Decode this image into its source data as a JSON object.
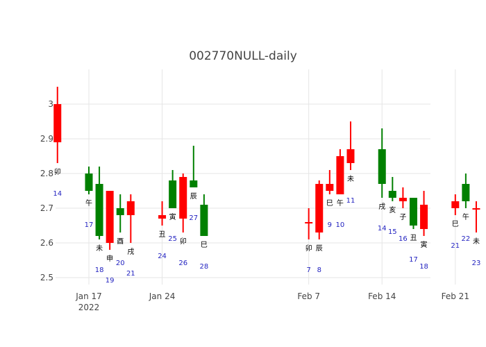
{
  "chart_data": {
    "type": "candlestick",
    "title": "002770NULL-daily",
    "xlabel": "",
    "ylabel": "",
    "ylim": [
      2.48,
      3.1
    ],
    "y_ticks": [
      2.5,
      2.6,
      2.7,
      2.8,
      2.9,
      3
    ],
    "y_tick_labels": [
      "2.5",
      "2.6",
      "2.7",
      "2.8",
      "2.9",
      "3"
    ],
    "x_ticks": [
      {
        "date": "2022-01-17",
        "label": "Jan 17",
        "sublabel": "2022"
      },
      {
        "date": "2022-01-24",
        "label": "Jan 24",
        "sublabel": ""
      },
      {
        "date": "2022-02-07",
        "label": "Feb 7",
        "sublabel": ""
      },
      {
        "date": "2022-02-14",
        "label": "Feb 14",
        "sublabel": ""
      },
      {
        "date": "2022-02-21",
        "label": "Feb 21",
        "sublabel": ""
      }
    ],
    "grid": true,
    "legend": "none",
    "colors": {
      "increasing": "#ff0000",
      "decreasing": "#008000",
      "grid": "#e5e5e5",
      "annotation_number": "#1f1fbf",
      "annotation_zodiac": "#000000"
    },
    "candles": [
      {
        "date": "2022-01-14",
        "open": 2.89,
        "high": 3.05,
        "low": 2.83,
        "close": 3.0,
        "zodiac": "卯",
        "day": "14"
      },
      {
        "date": "2022-01-17",
        "open": 2.8,
        "high": 2.82,
        "low": 2.74,
        "close": 2.75,
        "zodiac": "午",
        "day": "17"
      },
      {
        "date": "2022-01-18",
        "open": 2.77,
        "high": 2.82,
        "low": 2.61,
        "close": 2.62,
        "zodiac": "未",
        "day": "18"
      },
      {
        "date": "2022-01-19",
        "open": 2.6,
        "high": 2.75,
        "low": 2.58,
        "close": 2.75,
        "zodiac": "申",
        "day": "19"
      },
      {
        "date": "2022-01-20",
        "open": 2.7,
        "high": 2.74,
        "low": 2.63,
        "close": 2.68,
        "zodiac": "酉",
        "day": "20"
      },
      {
        "date": "2022-01-21",
        "open": 2.68,
        "high": 2.74,
        "low": 2.6,
        "close": 2.72,
        "zodiac": "戌",
        "day": "21"
      },
      {
        "date": "2022-01-24",
        "open": 2.67,
        "high": 2.72,
        "low": 2.65,
        "close": 2.68,
        "zodiac": "丑",
        "day": "24"
      },
      {
        "date": "2022-01-25",
        "open": 2.78,
        "high": 2.81,
        "low": 2.7,
        "close": 2.7,
        "zodiac": "寅",
        "day": "25"
      },
      {
        "date": "2022-01-26",
        "open": 2.67,
        "high": 2.8,
        "low": 2.63,
        "close": 2.79,
        "zodiac": "卯",
        "day": "26"
      },
      {
        "date": "2022-01-27",
        "open": 2.78,
        "high": 2.88,
        "low": 2.76,
        "close": 2.76,
        "zodiac": "辰",
        "day": "27"
      },
      {
        "date": "2022-01-28",
        "open": 2.71,
        "high": 2.74,
        "low": 2.62,
        "close": 2.62,
        "zodiac": "巳",
        "day": "28"
      },
      {
        "date": "2022-02-07",
        "open": 2.66,
        "high": 2.7,
        "low": 2.61,
        "close": 2.66,
        "zodiac": "卯",
        "day": "7"
      },
      {
        "date": "2022-02-08",
        "open": 2.63,
        "high": 2.78,
        "low": 2.61,
        "close": 2.77,
        "zodiac": "辰",
        "day": "8"
      },
      {
        "date": "2022-02-09",
        "open": 2.75,
        "high": 2.81,
        "low": 2.74,
        "close": 2.77,
        "zodiac": "巳",
        "day": "9"
      },
      {
        "date": "2022-02-10",
        "open": 2.74,
        "high": 2.87,
        "low": 2.74,
        "close": 2.85,
        "zodiac": "午",
        "day": "10"
      },
      {
        "date": "2022-02-11",
        "open": 2.83,
        "high": 2.95,
        "low": 2.81,
        "close": 2.87,
        "zodiac": "未",
        "day": "11"
      },
      {
        "date": "2022-02-14",
        "open": 2.87,
        "high": 2.93,
        "low": 2.73,
        "close": 2.77,
        "zodiac": "戌",
        "day": "14"
      },
      {
        "date": "2022-02-15",
        "open": 2.75,
        "high": 2.79,
        "low": 2.72,
        "close": 2.73,
        "zodiac": "亥",
        "day": "15"
      },
      {
        "date": "2022-02-16",
        "open": 2.72,
        "high": 2.76,
        "low": 2.7,
        "close": 2.73,
        "zodiac": "子",
        "day": "16"
      },
      {
        "date": "2022-02-17",
        "open": 2.73,
        "high": 2.73,
        "low": 2.64,
        "close": 2.65,
        "zodiac": "丑",
        "day": "17"
      },
      {
        "date": "2022-02-18",
        "open": 2.64,
        "high": 2.75,
        "low": 2.62,
        "close": 2.71,
        "zodiac": "寅",
        "day": "18"
      },
      {
        "date": "2022-02-21",
        "open": 2.7,
        "high": 2.74,
        "low": 2.68,
        "close": 2.72,
        "zodiac": "巳",
        "day": "21"
      },
      {
        "date": "2022-02-22",
        "open": 2.77,
        "high": 2.8,
        "low": 2.7,
        "close": 2.72,
        "zodiac": "午",
        "day": "22"
      },
      {
        "date": "2022-02-23",
        "open": 2.7,
        "high": 2.72,
        "low": 2.63,
        "close": 2.7,
        "zodiac": "未",
        "day": "23"
      }
    ]
  }
}
